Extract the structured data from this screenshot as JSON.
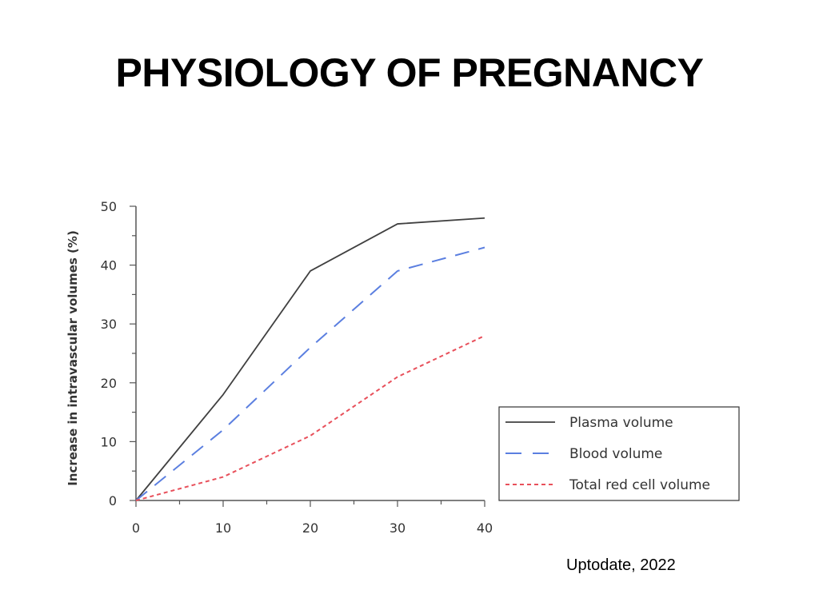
{
  "slide": {
    "title": "PHYSIOLOGY OF PREGNANCY",
    "citation": "Uptodate, 2022"
  },
  "chart_data": {
    "type": "line",
    "title": "",
    "xlabel": "",
    "ylabel": "Increase in intravascular volumes (%)",
    "x": [
      0,
      10,
      20,
      30,
      40
    ],
    "xlim": [
      0,
      40
    ],
    "ylim": [
      0,
      50
    ],
    "xticks": [
      0,
      10,
      20,
      30,
      40
    ],
    "yticks": [
      0,
      10,
      20,
      30,
      40,
      50
    ],
    "grid": false,
    "legend_position": "bottom-right",
    "series": [
      {
        "name": "Plasma volume",
        "values": [
          0,
          18,
          39,
          47,
          48
        ],
        "color": "#404040",
        "style": "solid"
      },
      {
        "name": "Blood volume",
        "values": [
          0,
          12,
          26,
          39,
          43
        ],
        "color": "#5b7fe0",
        "style": "long-dash"
      },
      {
        "name": "Total red cell volume",
        "values": [
          0,
          4,
          11,
          21,
          28
        ],
        "color": "#e8505b",
        "style": "short-dash"
      }
    ]
  }
}
